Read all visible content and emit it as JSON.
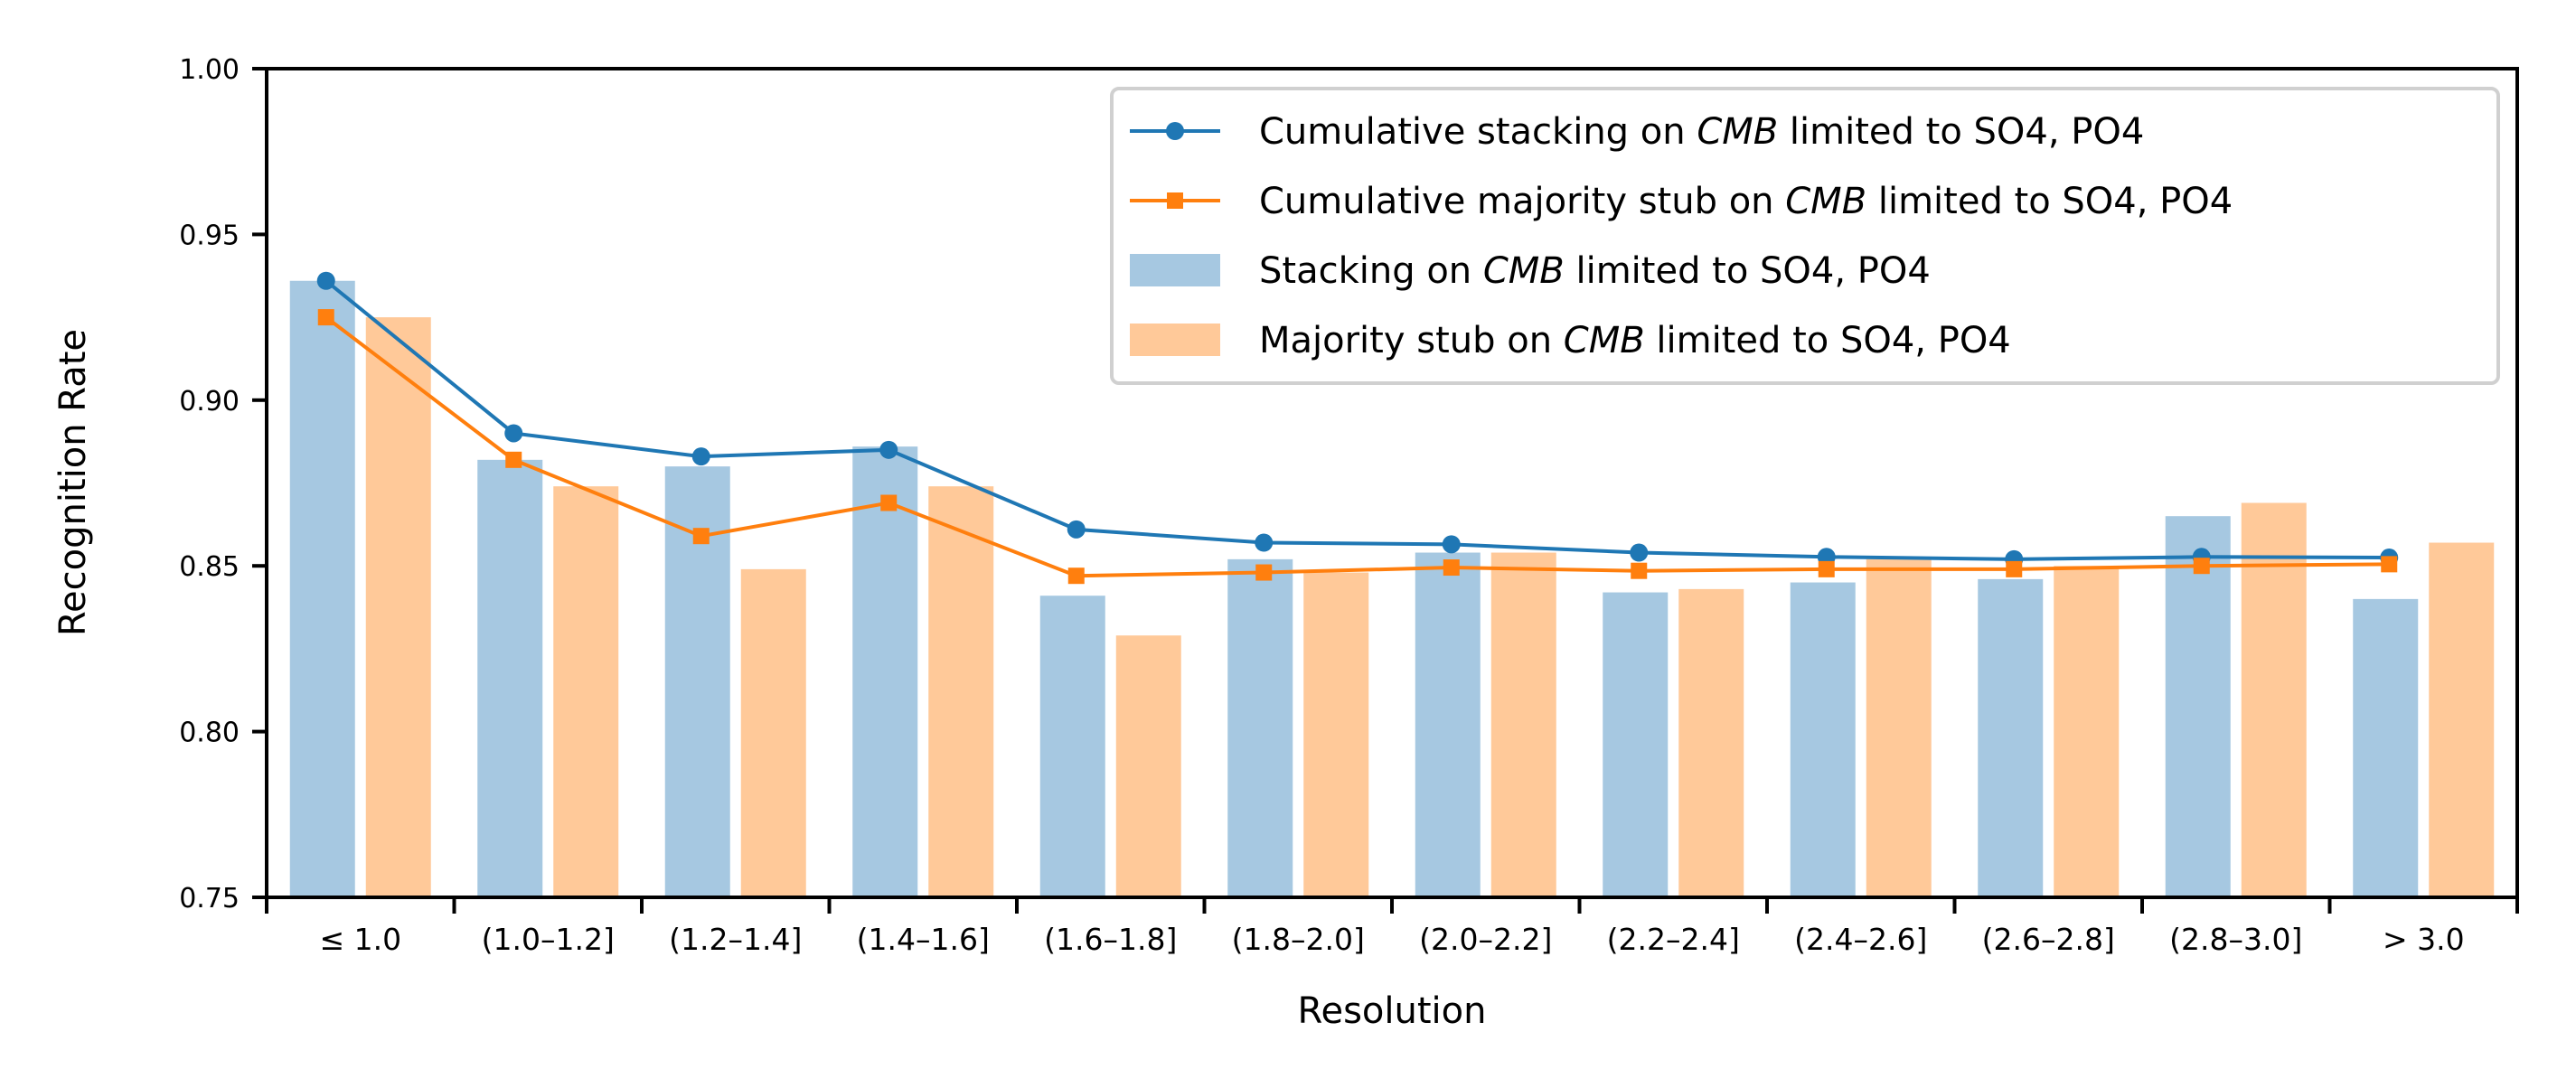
{
  "chart_data": {
    "type": "bar",
    "xlabel": "Resolution",
    "ylabel": "Recognition Rate",
    "ylim": [
      0.75,
      1.0
    ],
    "yticks": [
      "0.75",
      "0.80",
      "0.85",
      "0.90",
      "0.95",
      "1.00"
    ],
    "categories": [
      "≤ 1.0",
      "(1.0–1.2]",
      "(1.2–1.4]",
      "(1.4–1.6]",
      "(1.6–1.8]",
      "(1.8–2.0]",
      "(2.0–2.2]",
      "(2.2–2.4]",
      "(2.4–2.6]",
      "(2.6–2.8]",
      "(2.8–3.0]",
      "> 3.0"
    ],
    "legend_position": "top-right",
    "grid": false,
    "series": [
      {
        "name": "Stacking on CMB limited to SO4, PO4",
        "legend_parts": [
          "Stacking on ",
          "CMB",
          " limited to SO4, PO4"
        ],
        "kind": "bar",
        "color": "#a6c8e1",
        "values": [
          0.936,
          0.882,
          0.88,
          0.886,
          0.841,
          0.852,
          0.854,
          0.842,
          0.845,
          0.846,
          0.865,
          0.84
        ]
      },
      {
        "name": "Majority stub on CMB limited to SO4, PO4",
        "legend_parts": [
          "Majority stub on ",
          "CMB",
          " limited to SO4, PO4"
        ],
        "kind": "bar",
        "color": "#ffc999",
        "values": [
          0.925,
          0.874,
          0.849,
          0.874,
          0.829,
          0.848,
          0.854,
          0.843,
          0.852,
          0.85,
          0.869,
          0.857
        ]
      },
      {
        "name": "Cumulative stacking on CMB limited to SO4, PO4",
        "legend_parts": [
          "Cumulative stacking on ",
          "CMB",
          " limited to SO4, PO4"
        ],
        "kind": "line",
        "marker": "circle",
        "color": "#1f77b4",
        "values": [
          0.936,
          0.89,
          0.883,
          0.885,
          0.861,
          0.857,
          0.8565,
          0.854,
          0.8527,
          0.852,
          0.8527,
          0.8525
        ]
      },
      {
        "name": "Cumulative majority stub on CMB limited to SO4, PO4",
        "legend_parts": [
          "Cumulative majority stub on ",
          "CMB",
          " limited to SO4, PO4"
        ],
        "kind": "line",
        "marker": "square",
        "color": "#ff7f0e",
        "values": [
          0.925,
          0.882,
          0.859,
          0.869,
          0.847,
          0.848,
          0.8495,
          0.8485,
          0.849,
          0.849,
          0.85,
          0.8505
        ]
      }
    ],
    "legend_order": [
      2,
      3,
      0,
      1
    ]
  }
}
